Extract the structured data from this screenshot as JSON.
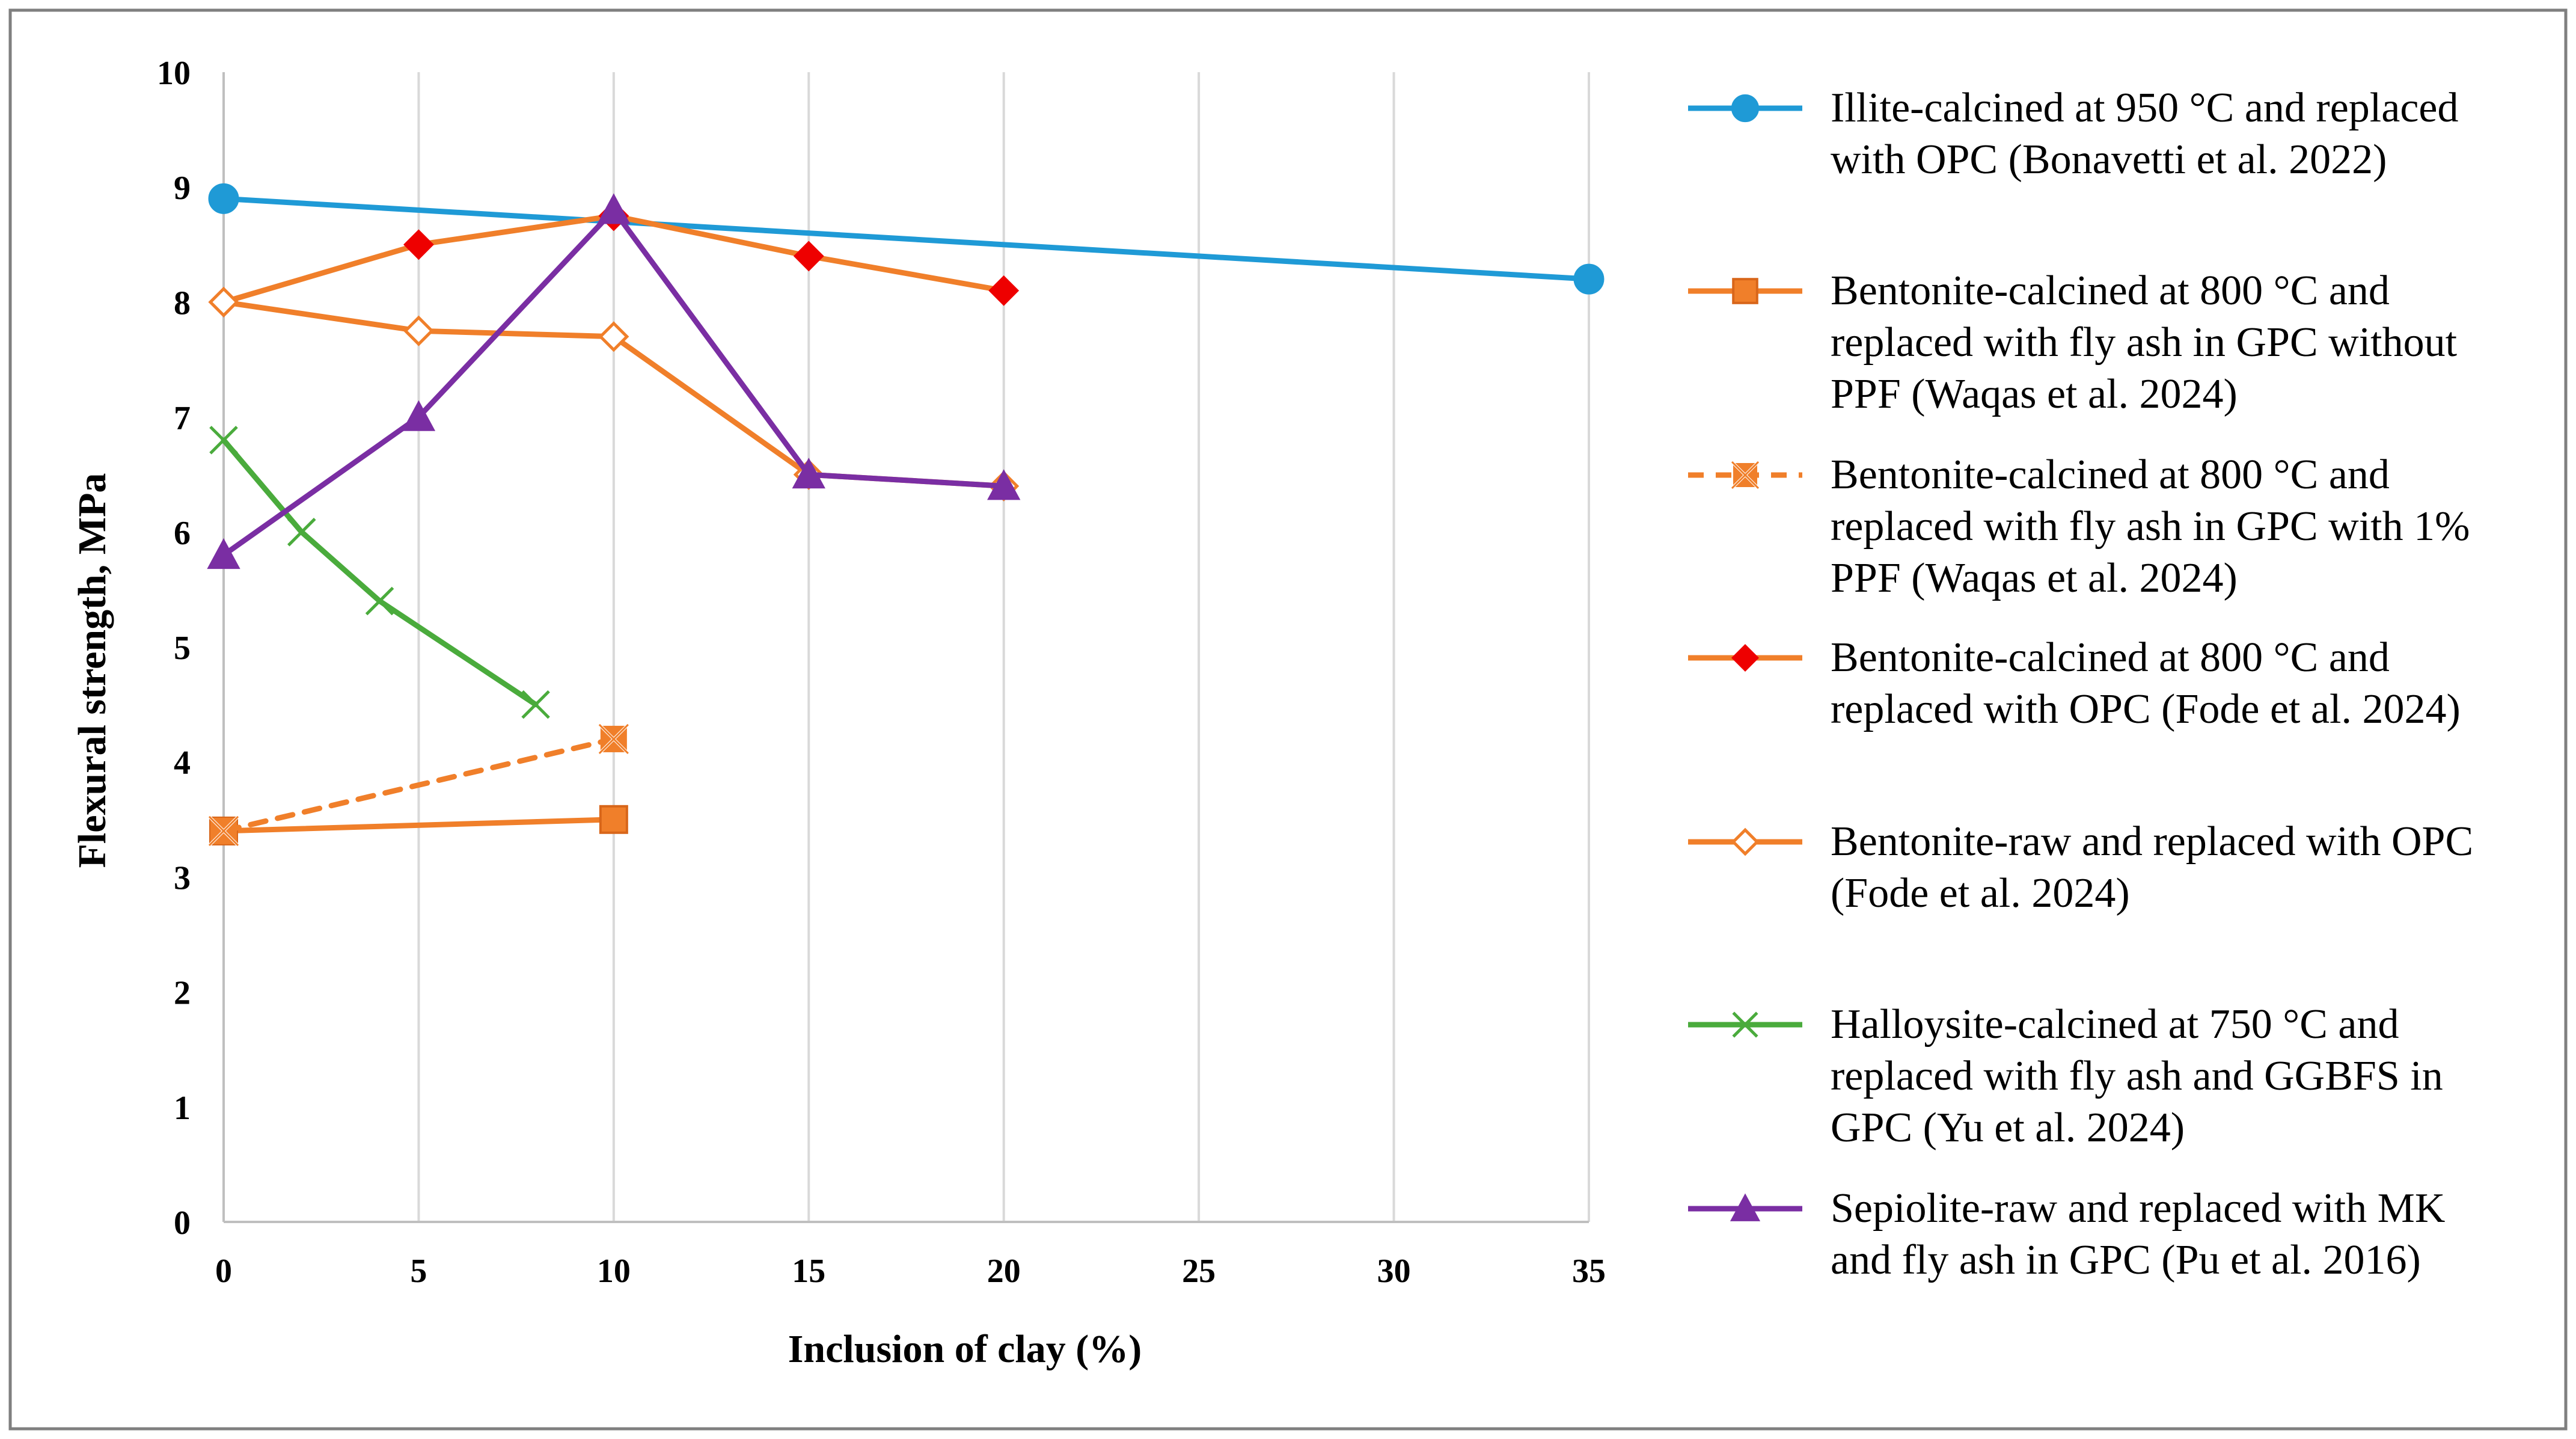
{
  "chart_data": {
    "type": "line",
    "xlabel": "Inclusion of clay (%)",
    "ylabel": "Flexural strength, MPa",
    "xlim": [
      0,
      35
    ],
    "ylim": [
      0,
      10
    ],
    "x_ticks": [
      0,
      5,
      10,
      15,
      20,
      25,
      30,
      35
    ],
    "y_ticks": [
      0,
      1,
      2,
      3,
      4,
      5,
      6,
      7,
      8,
      9,
      10
    ],
    "grid": "vertical",
    "legend_position": "right",
    "series": [
      {
        "name": "Illite-calcined at 950 °C and replaced with OPC (Bonavetti et al. 2022)",
        "legend_lines": [
          "Illite-calcined at 950 °C and replaced",
          "with OPC (Bonavetti et al. 2022)"
        ],
        "color": "#1f9ad6",
        "marker": "circle",
        "dash": "solid",
        "points": [
          [
            0,
            8.9
          ],
          [
            35,
            8.2
          ]
        ]
      },
      {
        "name": "Bentonite-calcined at 800 °C and replaced with fly ash in GPC without PPF (Waqas  et al. 2024)",
        "legend_lines": [
          "Bentonite-calcined at 800 °C and",
          "replaced with fly ash in GPC without",
          "PPF (Waqas  et al. 2024)"
        ],
        "color": "#f07f2a",
        "marker": "square",
        "dash": "solid",
        "points": [
          [
            0,
            3.4
          ],
          [
            10,
            3.5
          ]
        ]
      },
      {
        "name": "Bentonite-calcined at 800 °C and replaced with fly ash in GPC with 1% PPF (Waqas et al. 2024)",
        "legend_lines": [
          "Bentonite-calcined at 800 °C and",
          "replaced with fly ash in GPC with 1%",
          "PPF (Waqas et al. 2024)"
        ],
        "color": "#f07f2a",
        "marker": "x-square",
        "dash": "dashed",
        "points": [
          [
            0,
            3.4
          ],
          [
            10,
            4.2
          ]
        ]
      },
      {
        "name": "Bentonite-calcined at 800 °C and replaced with OPC (Fode et al. 2024)",
        "legend_lines": [
          "Bentonite-calcined at 800 °C and",
          "replaced with OPC (Fode et al. 2024)"
        ],
        "color": "#f07f2a",
        "marker": "diamond",
        "marker_color": "#ee0000",
        "dash": "solid",
        "points": [
          [
            0,
            8.0
          ],
          [
            5,
            8.5
          ],
          [
            10,
            8.75
          ],
          [
            15,
            8.4
          ],
          [
            20,
            8.1
          ]
        ]
      },
      {
        "name": "Bentonite-raw and replaced with OPC (Fode et al. 2024)",
        "legend_lines": [
          "Bentonite-raw and replaced with OPC",
          "(Fode et al. 2024)"
        ],
        "color": "#f07f2a",
        "marker": "open-diamond",
        "dash": "solid",
        "points": [
          [
            0,
            8.0
          ],
          [
            5,
            7.75
          ],
          [
            10,
            7.7
          ],
          [
            15,
            6.5
          ],
          [
            20,
            6.4
          ]
        ]
      },
      {
        "name": "Halloysite-calcined at 750 °C and replaced with fly ash and GGBFS in GPC (Yu et al. 2024)",
        "legend_lines": [
          "Halloysite-calcined at 750 °C and",
          "replaced with fly ash and GGBFS in",
          "GPC (Yu et al. 2024)"
        ],
        "color": "#4aab3c",
        "marker": "x",
        "dash": "solid",
        "points": [
          [
            0,
            6.8
          ],
          [
            2,
            6.0
          ],
          [
            4,
            5.4
          ],
          [
            8,
            4.5
          ]
        ]
      },
      {
        "name": "Sepiolite-raw and replaced with MK and fly ash in GPC (Pu et al. 2016)",
        "legend_lines": [
          "Sepiolite-raw and replaced with MK",
          "and fly ash in GPC (Pu et al. 2016)"
        ],
        "color": "#7a2ea3",
        "marker": "triangle",
        "dash": "solid",
        "points": [
          [
            0,
            5.8
          ],
          [
            5,
            7.0
          ],
          [
            10,
            8.8
          ],
          [
            15,
            6.5
          ],
          [
            20,
            6.4
          ]
        ]
      }
    ]
  }
}
